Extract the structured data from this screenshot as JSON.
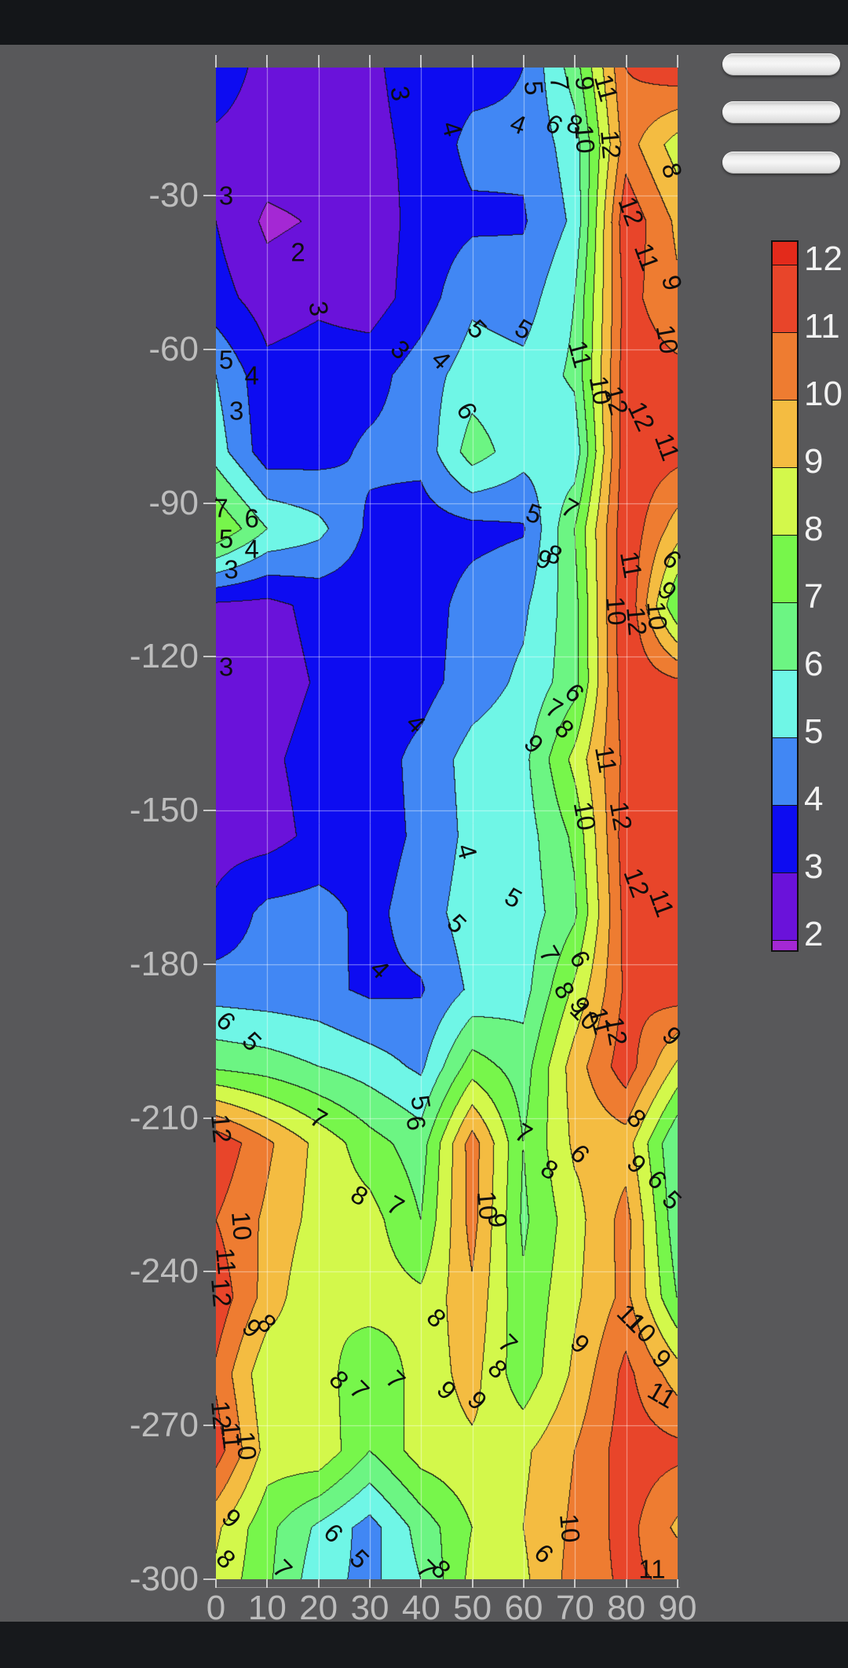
{
  "screen": {
    "background_color": "#58585a",
    "status_bar_color": "#141619",
    "nav_bar_color": "#17191c"
  },
  "toolbar": {
    "buttons": [
      {
        "name": "handle-button-1"
      },
      {
        "name": "handle-button-2"
      },
      {
        "name": "handle-button-3"
      }
    ]
  },
  "chart_data": {
    "type": "contour-filled",
    "xlim": [
      0,
      90
    ],
    "ylim": [
      -300,
      -5
    ],
    "x_ticks": [
      0,
      10,
      20,
      30,
      40,
      50,
      60,
      70,
      80,
      90
    ],
    "y_ticks": [
      -30,
      -60,
      -90,
      -120,
      -150,
      -180,
      -210,
      -240,
      -270,
      -300
    ],
    "levels": [
      2,
      3,
      4,
      5,
      6,
      7,
      8,
      9,
      10,
      11,
      12
    ],
    "grid_on": true,
    "legend_position": "right",
    "style": {
      "gridline_color": "rgba(255,255,255,0.5)",
      "contour_line_color": "#141414",
      "axis_label_color": "#bdbdbd",
      "tick_color": "#c9c9c9",
      "contour_label_color": "#0d0d0d",
      "colorbar_label_color": "#f2f2f2"
    },
    "palette": {
      "below_2": "#a428d4",
      "2_3": "#6a12da",
      "3_4": "#0d0cf1",
      "4_5": "#4187f4",
      "5_6": "#6ff6e6",
      "6_7": "#6cf583",
      "7_8": "#77f64b",
      "8_9": "#d3f84b",
      "9_10": "#f4bc41",
      "10_11": "#ee7c31",
      "11_12": "#e8452a",
      "above_12": "#e32a1b"
    },
    "colorbar": {
      "labels": [
        12,
        11,
        10,
        9,
        8,
        7,
        6,
        5,
        4,
        3,
        2
      ],
      "segment_colors_top_to_bottom": [
        "#e32a1b",
        "#e8452a",
        "#ee7c31",
        "#f4bc41",
        "#d3f84b",
        "#77f64b",
        "#6cf583",
        "#6ff6e6",
        "#4187f4",
        "#0d0cf1",
        "#6a12da",
        "#a428d4"
      ]
    },
    "grid": {
      "x": [
        0,
        10,
        20,
        30,
        40,
        50,
        60,
        70,
        80,
        90
      ],
      "y": [
        -5,
        -20,
        -35,
        -50,
        -65,
        -80,
        -95,
        -110,
        -125,
        -140,
        -155,
        -170,
        -185,
        -200,
        -215,
        -230,
        -245,
        -260,
        -275,
        -290,
        -300
      ],
      "values": [
        [
          3.5,
          2.7,
          2.7,
          2.8,
          3.5,
          3.6,
          4.0,
          6.5,
          11.0,
          11.8
        ],
        [
          2.8,
          2.6,
          2.6,
          2.7,
          3.3,
          4.3,
          4.2,
          5.5,
          10.5,
          8.5
        ],
        [
          3.0,
          1.8,
          2.1,
          2.4,
          3.4,
          3.8,
          3.9,
          5.2,
          11.8,
          9.8
        ],
        [
          3.4,
          2.5,
          2.8,
          2.5,
          3.5,
          4.8,
          4.5,
          6.0,
          11.4,
          10.2
        ],
        [
          5.0,
          3.3,
          3.5,
          3.6,
          4.5,
          5.5,
          5.3,
          6.2,
          11.6,
          11.3
        ],
        [
          5.5,
          3.4,
          3.6,
          4.2,
          4.3,
          6.5,
          5.4,
          5.3,
          11.7,
          11.4
        ],
        [
          8.0,
          6.0,
          5.3,
          3.8,
          3.5,
          3.7,
          3.9,
          7.0,
          11.8,
          9.5
        ],
        [
          2.8,
          2.7,
          3.3,
          3.4,
          3.5,
          4.4,
          4.8,
          6.6,
          12.0,
          7.0
        ],
        [
          2.6,
          2.5,
          3.1,
          3.4,
          3.6,
          4.5,
          5.2,
          6.6,
          11.8,
          11.2
        ],
        [
          2.7,
          2.8,
          3.4,
          3.5,
          4.3,
          5.4,
          5.7,
          8.3,
          11.3,
          11.8
        ],
        [
          2.6,
          2.6,
          3.3,
          3.5,
          4.2,
          5.3,
          5.5,
          7.2,
          11.6,
          11.9
        ],
        [
          3.2,
          4.3,
          4.4,
          3.7,
          4.5,
          5.5,
          5.4,
          6.8,
          11.4,
          11.7
        ],
        [
          4.5,
          4.4,
          4.3,
          3.8,
          3.9,
          5.2,
          5.6,
          8.2,
          11.2,
          11.6
        ],
        [
          6.8,
          6.5,
          6.0,
          5.5,
          4.8,
          7.5,
          6.5,
          9.5,
          11.6,
          8.8
        ],
        [
          11.8,
          10.2,
          8.7,
          7.4,
          6.5,
          10.5,
          7.0,
          9.2,
          9.5,
          6.0
        ],
        [
          11.0,
          9.8,
          8.6,
          8.4,
          7.0,
          10.4,
          6.8,
          8.6,
          10.4,
          6.3
        ],
        [
          11.7,
          9.6,
          8.0,
          8.5,
          8.2,
          9.8,
          7.2,
          8.8,
          10.3,
          7.0
        ],
        [
          10.8,
          8.2,
          8.5,
          7.2,
          8.4,
          9.4,
          7.3,
          9.2,
          11.3,
          9.5
        ],
        [
          11.5,
          8.6,
          8.8,
          7.0,
          8.5,
          8.8,
          8.8,
          10.0,
          11.5,
          11.3
        ],
        [
          9.2,
          7.3,
          5.8,
          4.6,
          6.4,
          8.0,
          9.0,
          10.2,
          11.4,
          9.8
        ],
        [
          8.8,
          7.2,
          5.4,
          4.7,
          6.0,
          8.3,
          8.8,
          10.4,
          11.2,
          10.8
        ]
      ]
    },
    "contour_labels": [
      {
        "v": 3,
        "x": 36,
        "y": -10,
        "r": 80
      },
      {
        "v": 4,
        "x": 46,
        "y": -17,
        "r": 75
      },
      {
        "v": 4,
        "x": 59,
        "y": -16,
        "r": 20
      },
      {
        "v": 5,
        "x": 62,
        "y": -9,
        "r": 85
      },
      {
        "v": 7,
        "x": 67,
        "y": -8,
        "r": 85
      },
      {
        "v": 9,
        "x": 72,
        "y": -8,
        "r": 85
      },
      {
        "v": 11,
        "x": 76,
        "y": -9,
        "r": 75
      },
      {
        "v": 6,
        "x": 66,
        "y": -16,
        "r": 30
      },
      {
        "v": 8,
        "x": 70,
        "y": -16,
        "r": 20
      },
      {
        "v": 10,
        "x": 72,
        "y": -19,
        "r": 85
      },
      {
        "v": 12,
        "x": 77,
        "y": -20,
        "r": 85
      },
      {
        "v": 8,
        "x": 89,
        "y": -25,
        "r": 75
      },
      {
        "v": 2,
        "x": 16,
        "y": -41,
        "r": 0
      },
      {
        "v": 3,
        "x": 2,
        "y": -30,
        "r": 0
      },
      {
        "v": 12,
        "x": 81,
        "y": -33,
        "r": 70
      },
      {
        "v": 11,
        "x": 84,
        "y": -42,
        "r": 70
      },
      {
        "v": 9,
        "x": 89,
        "y": -47,
        "r": 75
      },
      {
        "v": 10,
        "x": 88,
        "y": -58,
        "r": 80
      },
      {
        "v": 3,
        "x": 20,
        "y": -52,
        "r": 80
      },
      {
        "v": 3,
        "x": 36,
        "y": -60,
        "r": 45
      },
      {
        "v": 4,
        "x": 44,
        "y": -62,
        "r": 45
      },
      {
        "v": 5,
        "x": 51,
        "y": -56,
        "r": 45
      },
      {
        "v": 5,
        "x": 60,
        "y": -56,
        "r": 30
      },
      {
        "v": 11,
        "x": 71,
        "y": -61,
        "r": 75
      },
      {
        "v": 10,
        "x": 75,
        "y": -68,
        "r": 80
      },
      {
        "v": 12,
        "x": 78,
        "y": -70,
        "r": 75
      },
      {
        "v": 5,
        "x": 2,
        "y": -62,
        "r": 0
      },
      {
        "v": 4,
        "x": 7,
        "y": -65,
        "r": 0
      },
      {
        "v": 3,
        "x": 4,
        "y": -72,
        "r": 0
      },
      {
        "v": 6,
        "x": 49,
        "y": -72,
        "r": 60
      },
      {
        "v": 12,
        "x": 83,
        "y": -73,
        "r": 65
      },
      {
        "v": 11,
        "x": 88,
        "y": -79,
        "r": 70
      },
      {
        "v": 7,
        "x": 1,
        "y": -91,
        "r": 0
      },
      {
        "v": 6,
        "x": 7,
        "y": -93,
        "r": 0
      },
      {
        "v": 5,
        "x": 2,
        "y": -97,
        "r": 0
      },
      {
        "v": 4,
        "x": 7,
        "y": -99,
        "r": 0
      },
      {
        "v": 3,
        "x": 3,
        "y": -103,
        "r": 0
      },
      {
        "v": 5,
        "x": 62,
        "y": -92,
        "r": 20
      },
      {
        "v": 7,
        "x": 69,
        "y": -91,
        "r": 30
      },
      {
        "v": 8,
        "x": 66,
        "y": -100,
        "r": 20
      },
      {
        "v": 9,
        "x": 64,
        "y": -101,
        "r": 20
      },
      {
        "v": 6,
        "x": 89,
        "y": -101,
        "r": 45
      },
      {
        "v": 11,
        "x": 81,
        "y": -102,
        "r": 80
      },
      {
        "v": 9,
        "x": 88,
        "y": -107,
        "r": 45
      },
      {
        "v": 10,
        "x": 86,
        "y": -112,
        "r": 85
      },
      {
        "v": 10,
        "x": 78,
        "y": -111,
        "r": 85
      },
      {
        "v": 12,
        "x": 82,
        "y": -113,
        "r": 85
      },
      {
        "v": 3,
        "x": 2,
        "y": -122,
        "r": 0
      },
      {
        "v": 4,
        "x": 39,
        "y": -133,
        "r": 45
      },
      {
        "v": 7,
        "x": 66,
        "y": -130,
        "r": 30
      },
      {
        "v": 8,
        "x": 68,
        "y": -134,
        "r": 45
      },
      {
        "v": 9,
        "x": 62,
        "y": -137,
        "r": 45
      },
      {
        "v": 6,
        "x": 70,
        "y": -127,
        "r": 45
      },
      {
        "v": 11,
        "x": 76,
        "y": -140,
        "r": 80
      },
      {
        "v": 10,
        "x": 72,
        "y": -151,
        "r": 80
      },
      {
        "v": 12,
        "x": 79,
        "y": -151,
        "r": 80
      },
      {
        "v": 4,
        "x": 49,
        "y": -158,
        "r": 75
      },
      {
        "v": 5,
        "x": 58,
        "y": -167,
        "r": 30
      },
      {
        "v": 12,
        "x": 82,
        "y": -164,
        "r": 70
      },
      {
        "v": 11,
        "x": 87,
        "y": -168,
        "r": 70
      },
      {
        "v": 5,
        "x": 47,
        "y": -172,
        "r": 45
      },
      {
        "v": 4,
        "x": 32,
        "y": -181,
        "r": 45
      },
      {
        "v": 7,
        "x": 65,
        "y": -178,
        "r": 60
      },
      {
        "v": 6,
        "x": 71,
        "y": -179,
        "r": 60
      },
      {
        "v": 8,
        "x": 68,
        "y": -185,
        "r": 60
      },
      {
        "v": 9,
        "x": 71,
        "y": -188,
        "r": 60
      },
      {
        "v": 5,
        "x": 7,
        "y": -195,
        "r": 45
      },
      {
        "v": 6,
        "x": 2,
        "y": -191,
        "r": 45
      },
      {
        "v": 11,
        "x": 75,
        "y": -191,
        "r": 75
      },
      {
        "v": 10,
        "x": 72,
        "y": -190,
        "r": 45
      },
      {
        "v": 12,
        "x": 78,
        "y": -193,
        "r": 80
      },
      {
        "v": 9,
        "x": 89,
        "y": -194,
        "r": 45
      },
      {
        "v": 7,
        "x": 20,
        "y": -210,
        "r": 30
      },
      {
        "v": 5,
        "x": 40,
        "y": -207,
        "r": 80
      },
      {
        "v": 6,
        "x": 39,
        "y": -211,
        "r": 80
      },
      {
        "v": 7,
        "x": 60,
        "y": -213,
        "r": 30
      },
      {
        "v": 8,
        "x": 65,
        "y": -220,
        "r": 30
      },
      {
        "v": 6,
        "x": 71,
        "y": -217,
        "r": 45
      },
      {
        "v": 8,
        "x": 82,
        "y": -210,
        "r": 45
      },
      {
        "v": 9,
        "x": 82,
        "y": -219,
        "r": 45
      },
      {
        "v": 6,
        "x": 86,
        "y": -222,
        "r": 45
      },
      {
        "v": 5,
        "x": 89,
        "y": -226,
        "r": 45
      },
      {
        "v": 8,
        "x": 28,
        "y": -225,
        "r": 30
      },
      {
        "v": 7,
        "x": 35,
        "y": -227,
        "r": 30
      },
      {
        "v": 10,
        "x": 53,
        "y": -227,
        "r": 85
      },
      {
        "v": 9,
        "x": 55,
        "y": -230,
        "r": 85
      },
      {
        "v": 12,
        "x": 1,
        "y": -212,
        "r": 85
      },
      {
        "v": 10,
        "x": 5,
        "y": -231,
        "r": 85
      },
      {
        "v": 11,
        "x": 2,
        "y": -238,
        "r": 85
      },
      {
        "v": 12,
        "x": 1,
        "y": -244,
        "r": 85
      },
      {
        "v": 9,
        "x": 7,
        "y": -251,
        "r": 45
      },
      {
        "v": 8,
        "x": 10,
        "y": -250,
        "r": 45
      },
      {
        "v": 8,
        "x": 24,
        "y": -261,
        "r": 45
      },
      {
        "v": 7,
        "x": 28,
        "y": -263,
        "r": 45
      },
      {
        "v": 7,
        "x": 35,
        "y": -261,
        "r": 45
      },
      {
        "v": 8,
        "x": 43,
        "y": -249,
        "r": 45
      },
      {
        "v": 9,
        "x": 45,
        "y": -263,
        "r": 45
      },
      {
        "v": 9,
        "x": 51,
        "y": -265,
        "r": 45
      },
      {
        "v": 7,
        "x": 57,
        "y": -254,
        "r": 45
      },
      {
        "v": 8,
        "x": 55,
        "y": -259,
        "r": 45
      },
      {
        "v": 9,
        "x": 71,
        "y": -254,
        "r": 45
      },
      {
        "v": 11,
        "x": 81,
        "y": -249,
        "r": 45
      },
      {
        "v": 10,
        "x": 83,
        "y": -251,
        "r": 45
      },
      {
        "v": 11,
        "x": 87,
        "y": -264,
        "r": 30
      },
      {
        "v": 9,
        "x": 87,
        "y": -257,
        "r": 45
      },
      {
        "v": 12,
        "x": 1,
        "y": -268,
        "r": 85
      },
      {
        "v": 11,
        "x": 3,
        "y": -272,
        "r": 85
      },
      {
        "v": 10,
        "x": 6,
        "y": -274,
        "r": 85
      },
      {
        "v": 9,
        "x": 3,
        "y": -288,
        "r": 45
      },
      {
        "v": 8,
        "x": 2,
        "y": -296,
        "r": 45
      },
      {
        "v": 7,
        "x": 13,
        "y": -298,
        "r": 45
      },
      {
        "v": 6,
        "x": 23,
        "y": -291,
        "r": 45
      },
      {
        "v": 5,
        "x": 28,
        "y": -296,
        "r": 45
      },
      {
        "v": 7,
        "x": 41,
        "y": -298,
        "r": 45
      },
      {
        "v": 8,
        "x": 44,
        "y": -298,
        "r": 45
      },
      {
        "v": 6,
        "x": 64,
        "y": -295,
        "r": 45
      },
      {
        "v": 10,
        "x": 69,
        "y": -290,
        "r": 85
      },
      {
        "v": 11,
        "x": 85,
        "y": -298,
        "r": 0
      }
    ]
  }
}
